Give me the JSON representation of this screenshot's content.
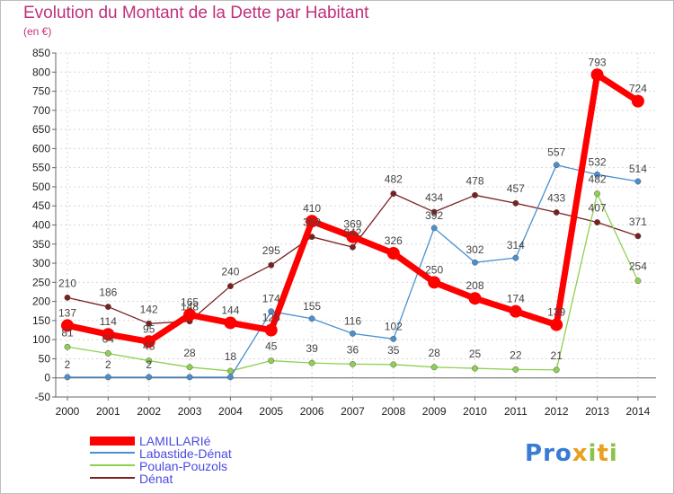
{
  "header": {
    "title": "Evolution du Montant de la Dette par Habitant",
    "unit": "(en €)"
  },
  "logo": {
    "text": "Proxiti"
  },
  "chart_data": {
    "type": "line",
    "title": "Evolution du Montant de la Dette par Habitant",
    "subtitle": "(en €)",
    "xlabel": "",
    "ylabel": "",
    "x": [
      "2000",
      "2001",
      "2002",
      "2003",
      "2004",
      "2005",
      "2006",
      "2007",
      "2008",
      "2009",
      "2010",
      "2011",
      "2012",
      "2013",
      "2014"
    ],
    "ylim": [
      -50,
      850
    ],
    "yticks": [
      "-50",
      "0",
      "50",
      "100",
      "150",
      "200",
      "250",
      "300",
      "350",
      "400",
      "450",
      "500",
      "550",
      "600",
      "650",
      "700",
      "750",
      "800",
      "850"
    ],
    "grid": true,
    "legend_position": "bottom-left",
    "series": [
      {
        "name": "LAMILLARIé",
        "color": "#ff0000",
        "values": [
          137,
          114,
          95,
          165,
          144,
          125,
          410,
          369,
          326,
          250,
          208,
          174,
          139,
          793,
          724
        ],
        "labels": [
          "137",
          "114",
          "95",
          "165",
          "144",
          "125",
          "410",
          "369",
          "326",
          "250",
          "208",
          "174",
          "139",
          "793",
          "724"
        ]
      },
      {
        "name": "Labastide-Dénat",
        "color": "#4a90d0",
        "values": [
          2,
          2,
          2,
          2,
          2,
          174,
          155,
          116,
          102,
          392,
          302,
          314,
          557,
          532,
          514
        ],
        "labels": [
          "2",
          "2",
          "2",
          "",
          "",
          "174",
          "155",
          "116",
          "102",
          "392",
          "302",
          "314",
          "557",
          "532",
          "514"
        ]
      },
      {
        "name": "Poulan-Pouzols",
        "color": "#8fd050",
        "values": [
          81,
          64,
          45,
          28,
          18,
          45,
          39,
          36,
          35,
          28,
          25,
          22,
          21,
          482,
          254
        ],
        "labels": [
          "81",
          "64",
          "45",
          "28",
          "18",
          "45",
          "39",
          "36",
          "35",
          "28",
          "25",
          "22",
          "21",
          "482",
          "254"
        ]
      },
      {
        "name": "Dénat",
        "color": "#7a2020",
        "values": [
          210,
          186,
          142,
          148,
          240,
          295,
          369,
          342,
          482,
          434,
          478,
          457,
          433,
          407,
          371
        ],
        "labels": [
          "210",
          "186",
          "142",
          "148",
          "240",
          "295",
          "369",
          "342",
          "482",
          "434",
          "478",
          "457",
          "433",
          "407",
          "371"
        ]
      }
    ]
  }
}
